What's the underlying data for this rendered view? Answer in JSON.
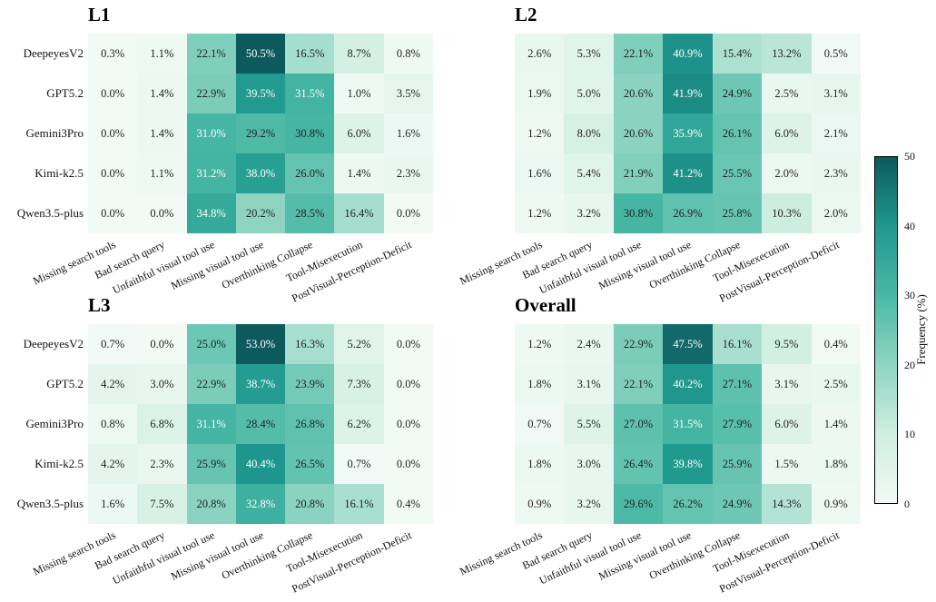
{
  "chart_data": {
    "type": "heatmap",
    "rows": [
      "DeepeyesV2",
      "GPT5.2",
      "Gemini3Pro",
      "Kimi-k2.5",
      "Qwen3.5-plus"
    ],
    "columns": [
      "Missing search tools",
      "Bad search query",
      "Unfaithful visual tool use",
      "Missing visual tool use",
      "Overthinking Collapse",
      "Tool-Misexecution",
      "PostVisual-Perception-Deficit"
    ],
    "value_suffix": "%",
    "panels": [
      {
        "title": "L1",
        "values": [
          [
            0.3,
            1.1,
            22.1,
            50.5,
            16.5,
            8.7,
            0.8
          ],
          [
            0.0,
            1.4,
            22.9,
            39.5,
            31.5,
            1.0,
            3.5
          ],
          [
            0.0,
            1.4,
            31.0,
            29.2,
            30.8,
            6.0,
            1.6
          ],
          [
            0.0,
            1.1,
            31.2,
            38.0,
            26.0,
            1.4,
            2.3
          ],
          [
            0.0,
            0.0,
            34.8,
            20.2,
            28.5,
            16.4,
            0.0
          ]
        ]
      },
      {
        "title": "L2",
        "values": [
          [
            2.6,
            5.3,
            22.1,
            40.9,
            15.4,
            13.2,
            0.5
          ],
          [
            1.9,
            5.0,
            20.6,
            41.9,
            24.9,
            2.5,
            3.1
          ],
          [
            1.2,
            8.0,
            20.6,
            35.9,
            26.1,
            6.0,
            2.1
          ],
          [
            1.6,
            5.4,
            21.9,
            41.2,
            25.5,
            2.0,
            2.3
          ],
          [
            1.2,
            3.2,
            30.8,
            26.9,
            25.8,
            10.3,
            2.0
          ]
        ]
      },
      {
        "title": "L3",
        "values": [
          [
            0.7,
            0.0,
            25.0,
            53.0,
            16.3,
            5.2,
            0.0
          ],
          [
            4.2,
            3.0,
            22.9,
            38.7,
            23.9,
            7.3,
            0.0
          ],
          [
            0.8,
            6.8,
            31.1,
            28.4,
            26.8,
            6.2,
            0.0
          ],
          [
            4.2,
            2.3,
            25.9,
            40.4,
            26.5,
            0.7,
            0.0
          ],
          [
            1.6,
            7.5,
            20.8,
            32.8,
            20.8,
            16.1,
            0.4
          ]
        ]
      },
      {
        "title": "Overall",
        "values": [
          [
            1.2,
            2.4,
            22.9,
            47.5,
            16.1,
            9.5,
            0.4
          ],
          [
            1.8,
            3.1,
            22.1,
            40.2,
            27.1,
            3.1,
            2.5
          ],
          [
            0.7,
            5.5,
            27.0,
            31.5,
            27.9,
            6.0,
            1.4
          ],
          [
            1.8,
            3.0,
            26.4,
            39.8,
            25.9,
            1.5,
            1.8
          ],
          [
            0.9,
            3.2,
            29.6,
            26.2,
            24.9,
            14.3,
            0.9
          ]
        ]
      }
    ],
    "colorbar": {
      "label": "Frequency (%)",
      "min": 0,
      "max": 50,
      "ticks": [
        "0",
        "10",
        "20",
        "30",
        "40",
        "50"
      ]
    },
    "colormap": [
      {
        "v": 0,
        "c": "#f2faf6"
      },
      {
        "v": 10,
        "c": "#cfeee1"
      },
      {
        "v": 20,
        "c": "#8fd5c2"
      },
      {
        "v": 30,
        "c": "#49b9a5"
      },
      {
        "v": 40,
        "c": "#1f988f"
      },
      {
        "v": 50,
        "c": "#0c5a5c"
      }
    ]
  }
}
